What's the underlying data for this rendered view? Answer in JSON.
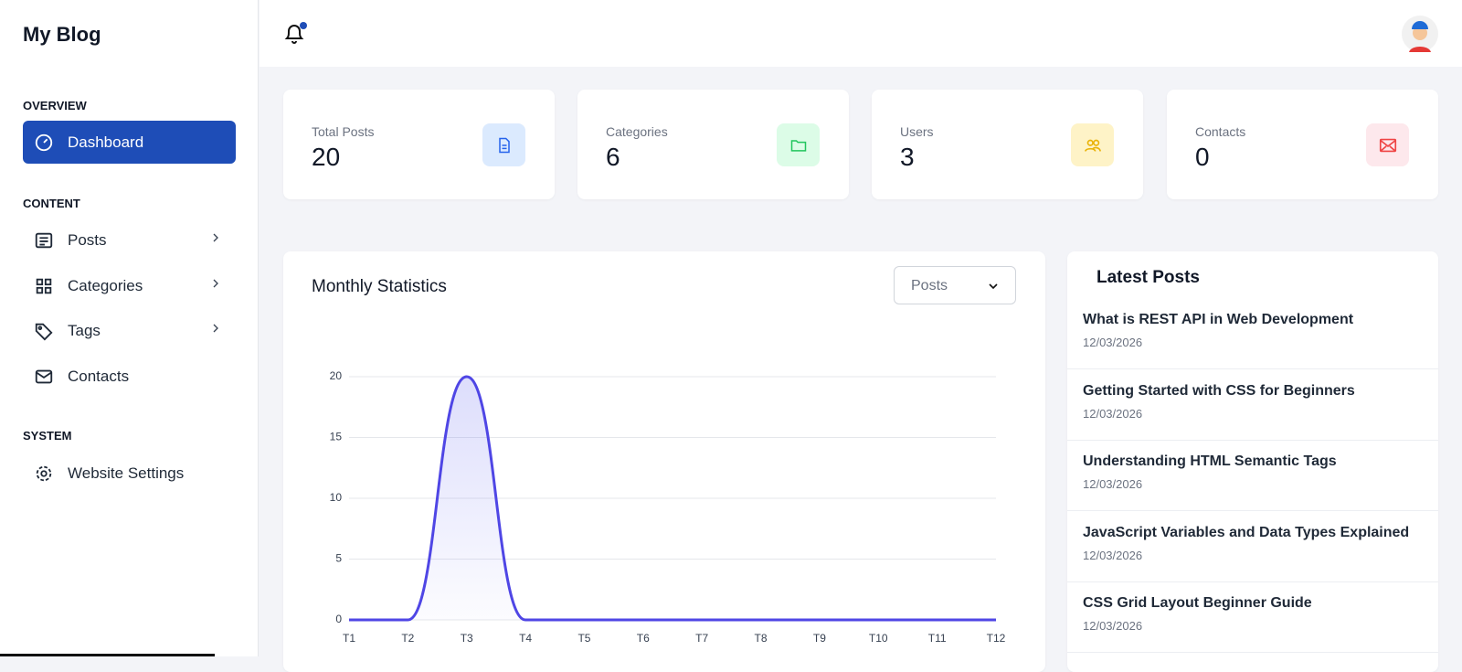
{
  "sidebar": {
    "brand": "My Blog",
    "sections": [
      {
        "title": "OVERVIEW",
        "items": [
          {
            "label": "Dashboard"
          }
        ]
      },
      {
        "title": "CONTENT",
        "items": [
          {
            "label": "Posts"
          },
          {
            "label": "Categories"
          },
          {
            "label": "Tags"
          },
          {
            "label": "Contacts"
          }
        ]
      },
      {
        "title": "SYSTEM",
        "items": [
          {
            "label": "Website Settings"
          }
        ]
      }
    ]
  },
  "stats": [
    {
      "label": "Total Posts",
      "value": 20
    },
    {
      "label": "Categories",
      "value": 6
    },
    {
      "label": "Users",
      "value": 3
    },
    {
      "label": "Contacts",
      "value": 0
    }
  ],
  "chart_filter": "Posts",
  "chart_data": {
    "type": "line",
    "title": "Monthly Statistics",
    "categories": [
      "T1",
      "T2",
      "T3",
      "T4",
      "T5",
      "T6",
      "T7",
      "T8",
      "T9",
      "T10",
      "T11",
      "T12"
    ],
    "values": [
      0,
      0,
      20,
      0,
      0,
      0,
      0,
      0,
      0,
      0,
      0,
      0
    ],
    "color": "#4f46e5",
    "ylim": [
      0,
      20
    ],
    "yticks": [
      0,
      5,
      10,
      15,
      20
    ],
    "grid": true
  },
  "latest_posts": {
    "title": "Latest Posts",
    "items": [
      {
        "title": "What is REST API in Web Development",
        "date": "12/03/2026"
      },
      {
        "title": "Getting Started with CSS for Beginners",
        "date": "12/03/2026"
      },
      {
        "title": "Understanding HTML Semantic Tags",
        "date": "12/03/2026"
      },
      {
        "title": "JavaScript Variables and Data Types Explained",
        "date": "12/03/2026"
      },
      {
        "title": "CSS Grid Layout Beginner Guide",
        "date": "12/03/2026"
      }
    ]
  }
}
